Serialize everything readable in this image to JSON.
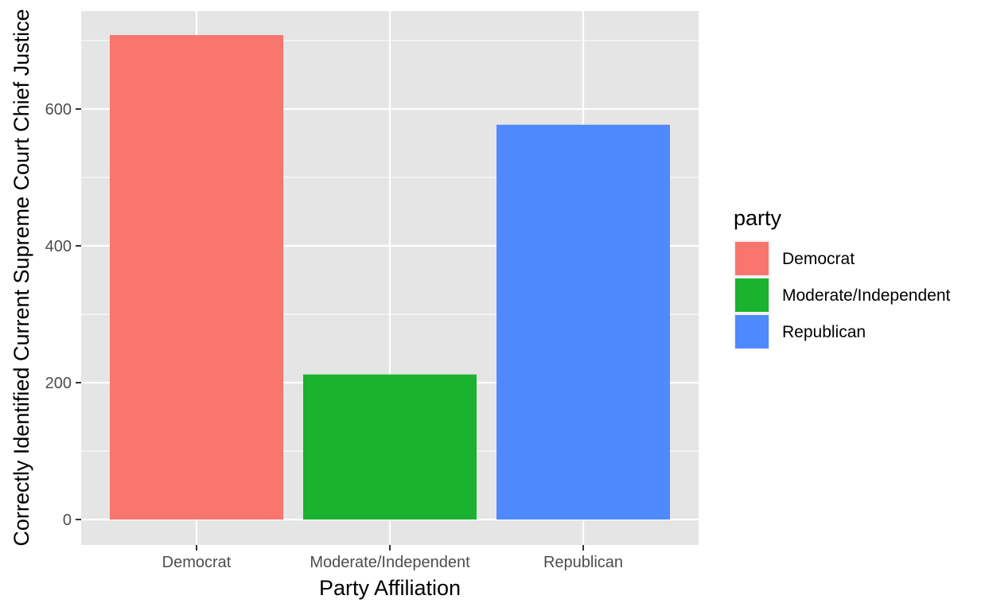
{
  "chart_data": {
    "type": "bar",
    "categories": [
      "Democrat",
      "Moderate/Independent",
      "Republican"
    ],
    "values": [
      708,
      212,
      577
    ],
    "colors": [
      "#F8766D",
      "#1AB22E",
      "#4F89FF"
    ],
    "xlabel": "Party Affiliation",
    "ylabel": "Correctly Identified Current Supreme Court Chief Justice",
    "ylim": [
      0,
      735
    ],
    "y_ticks": [
      0,
      200,
      400,
      600
    ],
    "y_tick_labels": [
      "0",
      "200",
      "400",
      "600"
    ],
    "grid": true,
    "panel_background": "#E5E5E5",
    "legend": {
      "title": "party",
      "placement": "right",
      "entries": [
        "Democrat",
        "Moderate/Independent",
        "Republican"
      ]
    }
  }
}
